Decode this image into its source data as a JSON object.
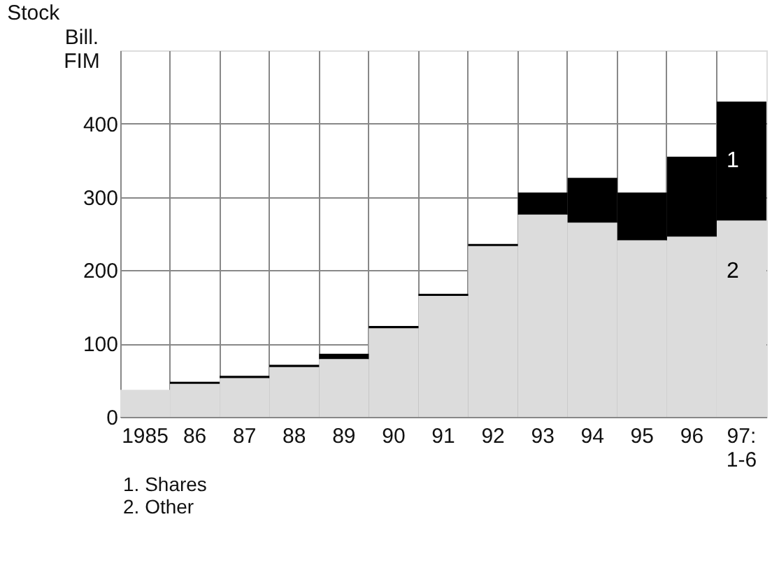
{
  "chart_data": {
    "type": "bar",
    "stacked": true,
    "title": "Stock",
    "ylabel": "Bill. FIM",
    "categories": [
      "1985",
      "86",
      "87",
      "88",
      "89",
      "90",
      "91",
      "92",
      "93",
      "94",
      "95",
      "96",
      "97: 1-6"
    ],
    "series": [
      {
        "color": "#dcdcdc",
        "values": [
          37,
          45,
          53,
          68,
          79,
          121,
          165,
          233,
          276,
          265,
          241,
          246,
          268
        ]
      },
      {
        "color": "#000000",
        "values": [
          0,
          3,
          3,
          3,
          7,
          3,
          3,
          3,
          30,
          61,
          65,
          109,
          162
        ]
      }
    ],
    "ylim": [
      0,
      500
    ],
    "yticks": [
      0,
      100,
      200,
      300,
      400
    ],
    "grid": true,
    "annotations": [
      "1",
      "2",
      "1. Shares",
      "2. Other"
    ]
  }
}
